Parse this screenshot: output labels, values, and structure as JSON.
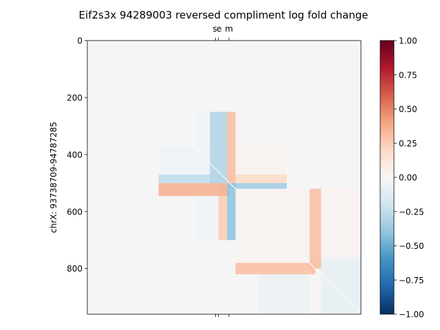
{
  "chart_data": {
    "type": "heatmap",
    "title": "Eif2s3x 94289003 reversed compliment log fold change",
    "ylabel": "chrX: 93738709-94787285",
    "xlabel": "",
    "matrix_size": 960,
    "y_ticks": [
      0,
      200,
      400,
      600,
      800
    ],
    "top_ticks": [
      {
        "label": "s",
        "value": 450
      },
      {
        "label": "e",
        "value": 460
      },
      {
        "label": "m",
        "value": 497
      }
    ],
    "bottom_ticks": [
      450,
      460,
      497
    ],
    "colorbar": {
      "min": -1.0,
      "max": 1.0,
      "ticks": [
        -1.0,
        -0.75,
        -0.5,
        -0.25,
        0.0,
        0.25,
        0.5,
        0.75,
        1.0
      ],
      "tick_labels": [
        "−1.00",
        "−0.75",
        "−0.50",
        "−0.25",
        "0.00",
        "0.25",
        "0.50",
        "0.75",
        "1.00"
      ],
      "colormap": "RdBu_r"
    },
    "background_value": 0.0,
    "grid": false,
    "colors": {
      "neutral": "#f5f5f5",
      "negative_strong": "#053061",
      "positive_strong": "#67001f"
    },
    "regions": [
      {
        "name": "left-band-upper",
        "x": [
          250,
          500
        ],
        "y": [
          470,
          500
        ],
        "value": -0.25
      },
      {
        "name": "left-band-lower",
        "x": [
          250,
          500
        ],
        "y": [
          500,
          545
        ],
        "value": 0.35
      },
      {
        "name": "right-band-upper",
        "x": [
          500,
          700
        ],
        "y": [
          470,
          500
        ],
        "value": 0.2
      },
      {
        "name": "right-band-lower",
        "x": [
          500,
          700
        ],
        "y": [
          500,
          520
        ],
        "value": -0.35
      },
      {
        "name": "upper-vertical-left",
        "x": [
          430,
          490
        ],
        "y": [
          250,
          500
        ],
        "value": -0.3
      },
      {
        "name": "upper-vertical-right",
        "x": [
          490,
          520
        ],
        "y": [
          250,
          500
        ],
        "value": 0.3
      },
      {
        "name": "lower-vertical-left",
        "x": [
          460,
          490
        ],
        "y": [
          500,
          700
        ],
        "value": 0.25
      },
      {
        "name": "lower-vertical-right",
        "x": [
          490,
          520
        ],
        "y": [
          500,
          700
        ],
        "value": -0.4
      },
      {
        "name": "lower-right-vertical",
        "x": [
          780,
          820
        ],
        "y": [
          520,
          800
        ],
        "value": 0.3
      },
      {
        "name": "lower-right-horizontal",
        "x": [
          520,
          800
        ],
        "y": [
          780,
          820
        ],
        "value": 0.3
      },
      {
        "name": "lower-right-cool-block",
        "x": [
          820,
          960
        ],
        "y": [
          760,
          960
        ],
        "value": -0.08
      },
      {
        "name": "mid-cool-block",
        "x": [
          600,
          780
        ],
        "y": [
          820,
          960
        ],
        "value": -0.06
      },
      {
        "name": "upper-left-pale-block",
        "x": [
          250,
          430
        ],
        "y": [
          370,
          470
        ],
        "value": -0.04
      },
      {
        "name": "upper-pale-block",
        "x": [
          380,
          520
        ],
        "y": [
          250,
          470
        ],
        "value": -0.03
      },
      {
        "name": "right-pale-block",
        "x": [
          520,
          700
        ],
        "y": [
          370,
          470
        ],
        "value": 0.03
      },
      {
        "name": "lower-left-pale-block",
        "x": [
          380,
          460
        ],
        "y": [
          545,
          700
        ],
        "value": -0.03
      },
      {
        "name": "right-mid-pale-block",
        "x": [
          520,
          960
        ],
        "y": [
          520,
          780
        ],
        "value": 0.03
      }
    ]
  }
}
